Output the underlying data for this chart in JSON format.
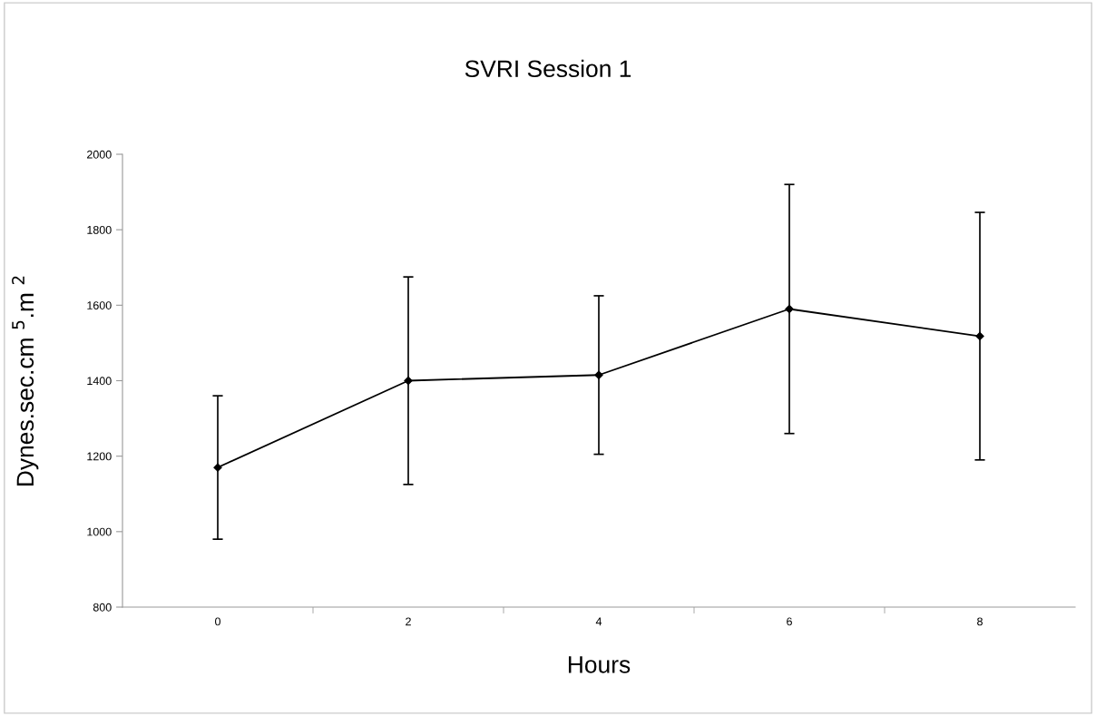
{
  "chart_data": {
    "type": "line",
    "title": "SVRI Session 1",
    "xlabel": "Hours",
    "ylabel": "Dynes.sec.cm $^{5}$.m $^{2}$",
    "categories": [
      "0",
      "2",
      "4",
      "6",
      "8"
    ],
    "series": [
      {
        "color": "#000000",
        "values": [
          1170,
          1400,
          1415,
          1590,
          1518
        ],
        "errors": [
          190,
          275,
          210,
          330,
          328
        ]
      }
    ],
    "ylim": [
      800,
      2000
    ],
    "yticks": [
      800,
      1000,
      1200,
      1400,
      1600,
      1800,
      2000
    ],
    "grid": false,
    "legend": false,
    "marker": "diamond",
    "line_style": "solid"
  }
}
